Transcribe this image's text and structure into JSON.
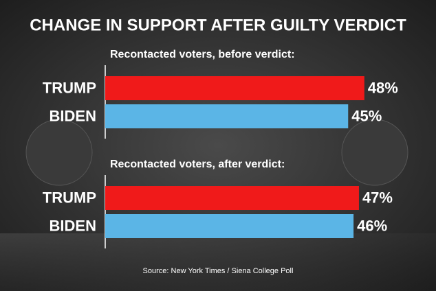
{
  "title": "CHANGE IN SUPPORT AFTER GUILTY VERDICT",
  "source": "Source: New York Times / Siena College Poll",
  "chart_data": [
    {
      "type": "bar",
      "orientation": "horizontal",
      "title": "Recontacted voters, before verdict:",
      "categories": [
        "TRUMP",
        "BIDEN"
      ],
      "values": [
        48,
        45
      ],
      "value_labels": [
        "48%",
        "45%"
      ],
      "colors": [
        "#f01a1a",
        "#5bb5e6"
      ]
    },
    {
      "type": "bar",
      "orientation": "horizontal",
      "title": "Recontacted voters, after verdict:",
      "categories": [
        "TRUMP",
        "BIDEN"
      ],
      "values": [
        47,
        46
      ],
      "value_labels": [
        "47%",
        "46%"
      ],
      "colors": [
        "#f01a1a",
        "#5bb5e6"
      ]
    }
  ]
}
